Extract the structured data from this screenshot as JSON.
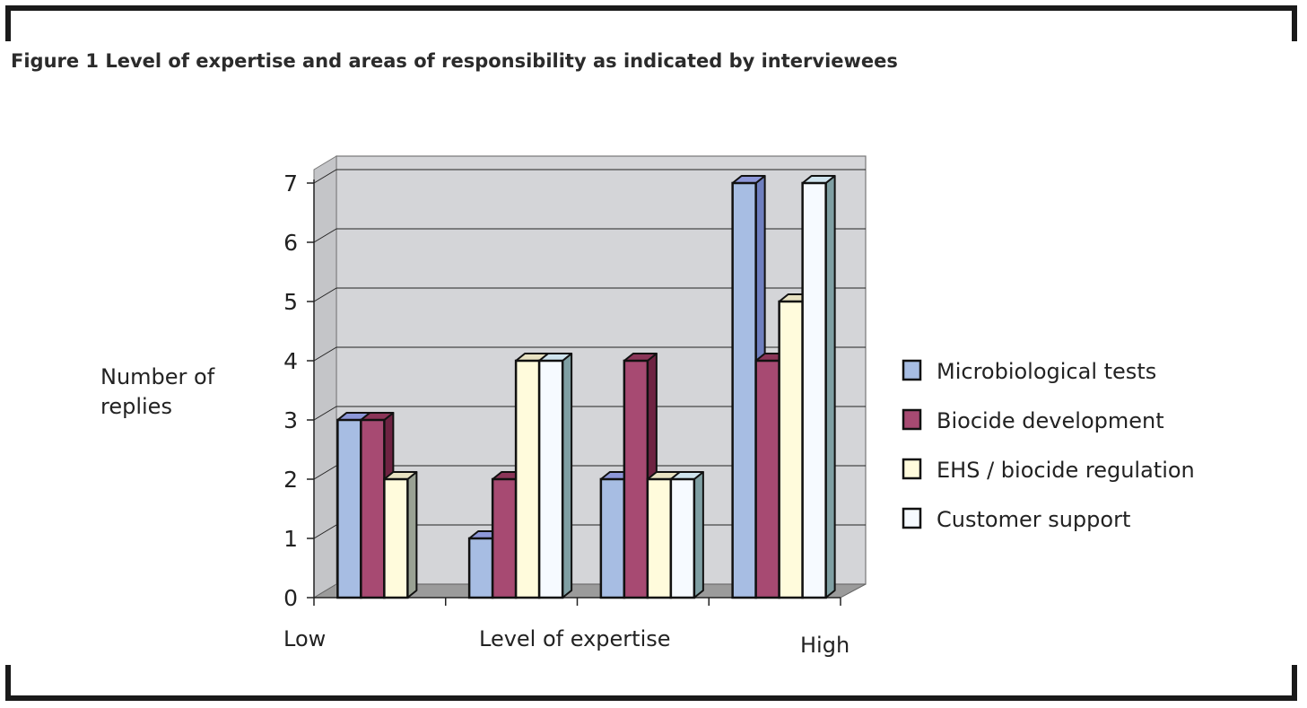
{
  "figure": {
    "title": "Figure 1 Level of expertise and areas of responsibility as indicated by interviewees"
  },
  "chart_data": {
    "type": "bar",
    "title": "Figure 1 Level of expertise and areas of responsibility as indicated by interviewees",
    "ylabel_lines": [
      "Number of",
      "replies"
    ],
    "xlabel": "Level of expertise",
    "x_end_labels": {
      "low": "Low",
      "high": "High"
    },
    "categories": [
      "",
      "",
      "",
      ""
    ],
    "ylim": [
      0,
      7
    ],
    "yticks": [
      "0",
      "1",
      "2",
      "3",
      "4",
      "5",
      "6",
      "7"
    ],
    "grid": true,
    "legend_position": "right",
    "series": [
      {
        "name": "Microbiological tests",
        "values": [
          3,
          1,
          2,
          7
        ],
        "color": "#a7bde3",
        "side": "#6f7fbf",
        "top": "#8d97d8"
      },
      {
        "name": "Biocide development",
        "values": [
          3,
          2,
          4,
          4
        ],
        "color": "#a74a72",
        "side": "#6e2342",
        "top": "#8b3558"
      },
      {
        "name": "EHS / biocide regulation",
        "values": [
          2,
          4,
          2,
          5
        ],
        "color": "#fffbdc",
        "side": "#9aa294",
        "top": "#e8e2c2"
      },
      {
        "name": "Customer support",
        "values": [
          0,
          4,
          2,
          7
        ],
        "color": "#f6faff",
        "side": "#7f9fa3",
        "top": "#cfe4ee"
      }
    ],
    "colors": {
      "plot_background": "#d4d5d8",
      "floor": "#9b9b9b",
      "gridline": "#222222"
    }
  }
}
